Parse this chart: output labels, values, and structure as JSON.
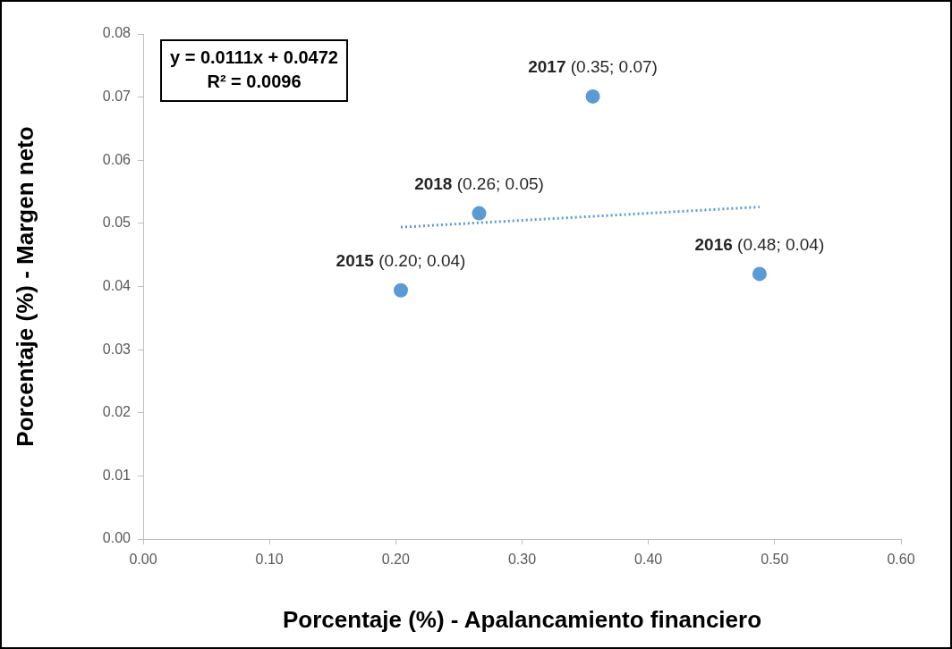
{
  "chart_data": {
    "type": "scatter",
    "xlabel": "Porcentaje (%) - Apalancamiento financiero",
    "ylabel": "Porcentaje (%) - Margen neto",
    "annotations": [
      "y = 0.0111x + 0.0472",
      "R² = 0.0096"
    ],
    "series": [
      {
        "color": "#5b9bd5",
        "x": [
          0.204,
          0.488,
          0.356,
          0.266
        ],
        "values": [
          0.0394,
          0.042,
          0.0701,
          0.0516
        ],
        "value_labels": [
          "2015 (0.20; 0.04)",
          "2016 (0.48; 0.04)",
          "2017 (0.35; 0.07)",
          "2018 (0.26; 0.05)"
        ],
        "marker": "circle"
      },
      {
        "type": "line",
        "color": "#5b9bd5",
        "x": [
          0.204,
          0.488
        ],
        "values": [
          0.0494,
          0.0526
        ],
        "line_style": "dotted",
        "marker": "none"
      }
    ],
    "xlim": [
      0,
      0.6
    ],
    "xticks": [
      {
        "value": 0,
        "label": "0.00"
      },
      {
        "value": 0.1,
        "label": "0.10"
      },
      {
        "value": 0.2,
        "label": "0.20"
      },
      {
        "value": 0.3,
        "label": "0.30"
      },
      {
        "value": 0.4,
        "label": "0.40"
      },
      {
        "value": 0.5,
        "label": "0.50"
      },
      {
        "value": 0.6,
        "label": "0.60"
      }
    ],
    "ylim": [
      0,
      0.08
    ],
    "yticks": [
      {
        "value": 0,
        "label": "0.00"
      },
      {
        "value": 0.01,
        "label": "0.01"
      },
      {
        "value": 0.02,
        "label": "0.02"
      },
      {
        "value": 0.03,
        "label": "0.03"
      },
      {
        "value": 0.04,
        "label": "0.04"
      },
      {
        "value": 0.05,
        "label": "0.05"
      },
      {
        "value": 0.06,
        "label": "0.06"
      },
      {
        "value": 0.07,
        "label": "0.07"
      },
      {
        "value": 0.08,
        "label": "0.08"
      }
    ],
    "grid": false,
    "legend": false
  }
}
